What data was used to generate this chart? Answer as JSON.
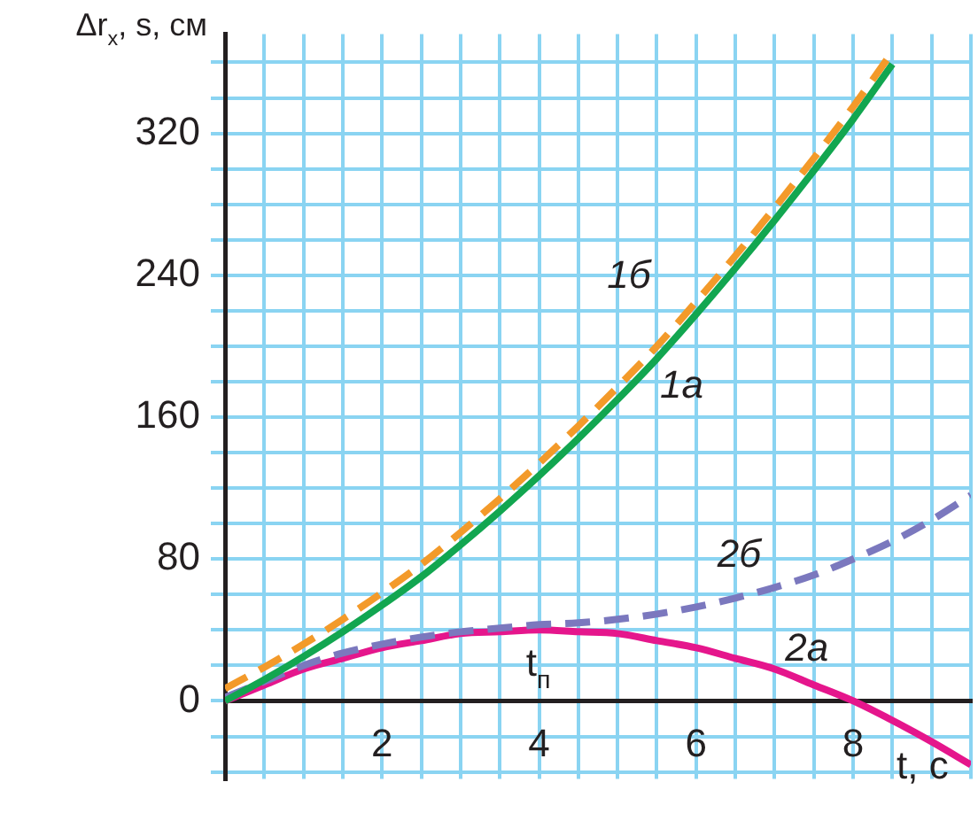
{
  "chart_data": {
    "type": "line",
    "xlabel": "t, с",
    "ylabel": "Δr$_{x}$, s, см",
    "x": [
      0,
      0.5,
      1,
      1.5,
      2,
      2.5,
      3,
      3.5,
      4,
      4.5,
      5,
      5.5,
      6,
      6.5,
      7,
      7.5,
      8,
      8.5,
      9,
      9.5
    ],
    "series": [
      {
        "name": "1б",
        "color": "#f39a2a",
        "line_style": "dashed",
        "values": [
          7,
          19,
          32,
          46,
          61,
          77,
          95,
          114,
          134,
          155,
          177,
          200,
          225,
          251,
          278,
          306,
          335,
          366,
          null,
          null
        ]
      },
      {
        "name": "1а",
        "color": "#12a650",
        "line_style": "solid",
        "values": [
          0,
          12,
          25,
          39,
          54,
          70,
          88,
          107,
          127,
          148,
          170,
          193,
          218,
          244,
          271,
          299,
          328,
          359,
          null,
          null
        ]
      },
      {
        "name": "2б",
        "color": "#7b78be",
        "line_style": "dashed",
        "values": [
          2,
          11,
          20,
          27,
          32,
          36,
          39,
          41,
          43,
          44,
          46,
          49,
          53,
          58,
          64,
          71,
          80,
          90,
          102,
          116
        ]
      },
      {
        "name": "2а",
        "color": "#e5168c",
        "line_style": "solid",
        "values": [
          0,
          9,
          18,
          24,
          30,
          34,
          38,
          39,
          40,
          39,
          38,
          34,
          30,
          24,
          18,
          9,
          0,
          -11,
          -23,
          -36
        ]
      }
    ],
    "annotations": [
      "t$_{п}$"
    ],
    "xlim": [
      0,
      9.5
    ],
    "ylim": [
      -44,
      376
    ],
    "xticks": [
      {
        "value": 0.5,
        "label": null
      },
      {
        "value": 1,
        "label": null
      },
      {
        "value": 1.5,
        "label": null
      },
      2,
      {
        "value": 2.5,
        "label": null
      },
      {
        "value": 3,
        "label": null
      },
      {
        "value": 3.5,
        "label": null
      },
      4,
      {
        "value": 4.5,
        "label": null
      },
      {
        "value": 5,
        "label": null
      },
      {
        "value": 5.5,
        "label": null
      },
      6,
      {
        "value": 6.5,
        "label": null
      },
      {
        "value": 7,
        "label": null
      },
      {
        "value": 7.5,
        "label": null
      },
      8,
      {
        "value": 8.5,
        "label": null
      },
      {
        "value": 9,
        "label": null
      },
      {
        "value": 9.5,
        "label": null
      }
    ],
    "yticks": [
      {
        "value": -40,
        "label": null
      },
      {
        "value": -20,
        "label": null
      },
      0,
      {
        "value": 20,
        "label": null
      },
      {
        "value": 40,
        "label": null
      },
      {
        "value": 60,
        "label": null
      },
      80,
      {
        "value": 100,
        "label": null
      },
      {
        "value": 120,
        "label": null
      },
      {
        "value": 140,
        "label": null
      },
      160,
      {
        "value": 180,
        "label": null
      },
      {
        "value": 200,
        "label": null
      },
      {
        "value": 220,
        "label": null
      },
      240,
      {
        "value": 260,
        "label": null
      },
      {
        "value": 280,
        "label": null
      },
      {
        "value": 300,
        "label": null
      },
      320,
      {
        "value": 340,
        "label": null
      },
      {
        "value": 360,
        "label": null
      }
    ],
    "grid": true,
    "legend": false,
    "marker": "none"
  }
}
